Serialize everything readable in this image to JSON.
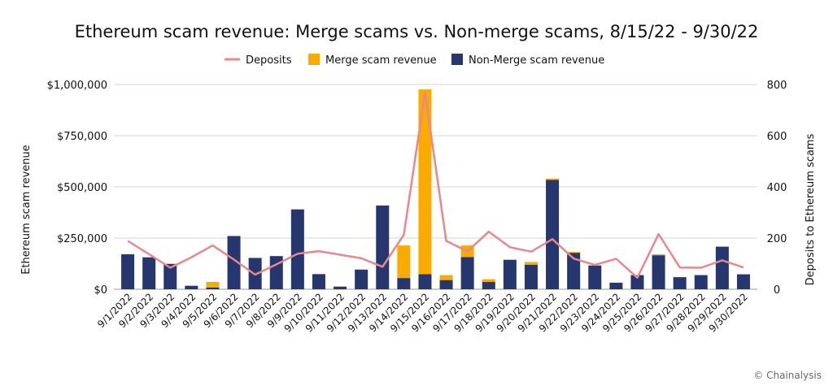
{
  "chart_data": {
    "type": "bar",
    "title": "Ethereum scam revenue: Merge scams vs. Non-merge scams, 8/15/22 - 9/30/22",
    "ylabel": "Ethereum scam revenue",
    "y2label": "Deposits to Ethereum scams",
    "ylim": [
      0,
      1000000
    ],
    "y2lim": [
      0,
      800
    ],
    "yticks": [
      "$0",
      "$250,000",
      "$500,000",
      "$750,000",
      "$1,000,000"
    ],
    "y2ticks": [
      "0",
      "200",
      "400",
      "600",
      "800"
    ],
    "grid": true,
    "legend_position": "top-center",
    "legend": [
      "Deposits",
      "Merge scam revenue",
      "Non-Merge scam revenue"
    ],
    "colors": {
      "deposits": "#e8878c",
      "merge": "#f9ab00",
      "nonmerge": "#26366e"
    },
    "categories": [
      "9/1/2022",
      "9/2/2022",
      "9/3/2022",
      "9/4/2022",
      "9/5/2022",
      "9/6/2022",
      "9/7/2022",
      "9/8/2022",
      "9/9/2022",
      "9/10/2022",
      "9/11/2022",
      "9/12/2022",
      "9/13/2022",
      "9/14/2022",
      "9/15/2022",
      "9/16/2022",
      "9/17/2022",
      "9/18/2022",
      "9/19/2022",
      "9/20/2022",
      "9/21/2022",
      "9/22/2022",
      "9/23/2022",
      "9/24/2022",
      "9/25/2022",
      "9/26/2022",
      "9/27/2022",
      "9/28/2022",
      "9/29/2022",
      "9/30/2022"
    ],
    "series": [
      {
        "name": "Non-Merge scam revenue",
        "type": "bar",
        "axis": "left",
        "values": [
          171000,
          156000,
          124000,
          17000,
          9000,
          260000,
          153000,
          162000,
          390000,
          74000,
          13000,
          96000,
          409000,
          55000,
          74000,
          45000,
          157000,
          36000,
          144000,
          120000,
          534000,
          178000,
          116000,
          32000,
          69000,
          166000,
          59000,
          69000,
          208000,
          73000
        ]
      },
      {
        "name": "Merge scam revenue",
        "type": "bar",
        "axis": "left",
        "values": [
          0,
          0,
          0,
          0,
          27000,
          0,
          0,
          0,
          0,
          0,
          0,
          0,
          0,
          159000,
          902000,
          24000,
          57000,
          13000,
          0,
          13000,
          6000,
          4000,
          0,
          0,
          0,
          5000,
          0,
          0,
          0,
          0
        ]
      },
      {
        "name": "Deposits",
        "type": "line",
        "axis": "right",
        "values": [
          189,
          137,
          84,
          125,
          171,
          116,
          57,
          97,
          139,
          149,
          135,
          121,
          88,
          213,
          770,
          189,
          148,
          225,
          164,
          147,
          196,
          120,
          95,
          119,
          45,
          216,
          85,
          84,
          113,
          85
        ]
      }
    ]
  },
  "footer": {
    "credit": "© Chainalysis"
  }
}
